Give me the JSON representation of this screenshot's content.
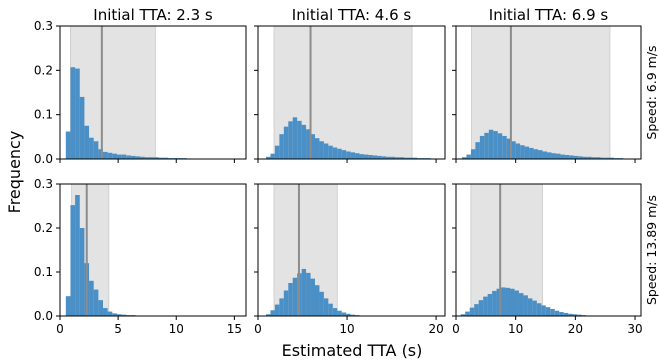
{
  "figure": {
    "ylabel": "Frequency",
    "xlabel": "Estimated TTA (s)",
    "row_labels": [
      "Speed: 6.9 m/s",
      "Speed: 13.89 m/s"
    ],
    "col_titles": [
      "Initial TTA: 2.3 s",
      "Initial TTA: 4.6 s",
      "Initial TTA: 6.9 s"
    ]
  },
  "colors": {
    "bar": "#4a8fc5",
    "band": "#e3e3e3",
    "line": "#8c8c8c"
  },
  "chart_data": [
    {
      "type": "bar",
      "title": "Initial TTA: 2.3 s",
      "row_label": "Speed: 6.9 m/s",
      "xlim": [
        0,
        16
      ],
      "ylim": [
        0,
        0.3
      ],
      "xticks": [
        0,
        5,
        10,
        15
      ],
      "yticks": [
        "0.0",
        "0.1",
        "0.2",
        "0.3"
      ],
      "bin_start": 0.5,
      "bin_width": 0.4,
      "values": [
        0.062,
        0.207,
        0.204,
        0.14,
        0.075,
        0.048,
        0.04,
        0.022,
        0.016,
        0.014,
        0.012,
        0.01,
        0.01,
        0.008,
        0.007,
        0.006,
        0.005,
        0.004,
        0.004,
        0.004,
        0.003,
        0.003,
        0.002,
        0.002,
        0.002,
        0.002,
        0.001,
        0.001,
        0.001,
        0.001,
        0.001,
        0.001,
        0.001,
        0.001,
        0.001
      ],
      "band": [
        0.9,
        8.2
      ],
      "marker": 3.6
    },
    {
      "type": "bar",
      "title": "Initial TTA: 4.6 s",
      "row_label": "Speed: 6.9 m/s",
      "xlim": [
        0,
        21
      ],
      "ylim": [
        0,
        0.3
      ],
      "xticks": [
        0,
        10,
        20
      ],
      "yticks": [
        "0.0",
        "0.1",
        "0.2",
        "0.3"
      ],
      "bin_start": 0.9,
      "bin_width": 0.5,
      "values": [
        0.005,
        0.012,
        0.03,
        0.056,
        0.073,
        0.085,
        0.094,
        0.086,
        0.077,
        0.067,
        0.056,
        0.047,
        0.04,
        0.035,
        0.03,
        0.026,
        0.023,
        0.02,
        0.017,
        0.015,
        0.013,
        0.011,
        0.01,
        0.009,
        0.008,
        0.007,
        0.006,
        0.005,
        0.005,
        0.004,
        0.004,
        0.003,
        0.003,
        0.003,
        0.002,
        0.002,
        0.002
      ],
      "band": [
        1.8,
        17.3
      ],
      "marker": 5.9
    },
    {
      "type": "bar",
      "title": "Initial TTA: 6.9 s",
      "row_label": "Speed: 6.9 m/s",
      "xlim": [
        0,
        31
      ],
      "ylim": [
        0,
        0.3
      ],
      "xticks": [
        0,
        10,
        20,
        30
      ],
      "yticks": [
        "0.0",
        "0.1",
        "0.2",
        "0.3"
      ],
      "bin_start": 1.0,
      "bin_width": 0.75,
      "values": [
        0.004,
        0.01,
        0.022,
        0.038,
        0.052,
        0.059,
        0.066,
        0.063,
        0.058,
        0.052,
        0.046,
        0.04,
        0.035,
        0.031,
        0.028,
        0.025,
        0.022,
        0.02,
        0.017,
        0.015,
        0.013,
        0.012,
        0.01,
        0.009,
        0.008,
        0.007,
        0.006,
        0.005,
        0.005,
        0.004,
        0.004,
        0.003,
        0.003,
        0.003,
        0.002,
        0.002
      ],
      "band": [
        2.6,
        25.8
      ],
      "marker": 9.2
    },
    {
      "type": "bar",
      "title": "",
      "row_label": "Speed: 13.89 m/s",
      "xlim": [
        0,
        16
      ],
      "ylim": [
        0,
        0.3
      ],
      "xticks": [
        0,
        5,
        10,
        15
      ],
      "yticks": [
        "0.0",
        "0.1",
        "0.2",
        "0.3"
      ],
      "bin_start": 0.5,
      "bin_width": 0.4,
      "values": [
        0.045,
        0.252,
        0.275,
        0.2,
        0.12,
        0.08,
        0.06,
        0.036,
        0.018,
        0.01,
        0.006,
        0.004,
        0.003,
        0.002,
        0.002,
        0.001,
        0.001
      ],
      "band": [
        1.0,
        4.2
      ],
      "marker": 2.3
    },
    {
      "type": "bar",
      "title": "",
      "row_label": "Speed: 13.89 m/s",
      "xlim": [
        0,
        21
      ],
      "ylim": [
        0,
        0.3
      ],
      "xticks": [
        0,
        10,
        20
      ],
      "yticks": [
        "0.0",
        "0.1",
        "0.2",
        "0.3"
      ],
      "bin_start": 0.9,
      "bin_width": 0.5,
      "values": [
        0.004,
        0.013,
        0.026,
        0.04,
        0.058,
        0.075,
        0.087,
        0.097,
        0.107,
        0.098,
        0.085,
        0.07,
        0.055,
        0.04,
        0.028,
        0.018,
        0.012,
        0.008,
        0.005,
        0.003,
        0.002,
        0.001
      ],
      "band": [
        1.8,
        8.9
      ],
      "marker": 4.6
    },
    {
      "type": "bar",
      "title": "",
      "row_label": "Speed: 13.89 m/s",
      "xlim": [
        0,
        31
      ],
      "ylim": [
        0,
        0.3
      ],
      "xticks": [
        0,
        10,
        20,
        30
      ],
      "yticks": [
        "0.0",
        "0.1",
        "0.2",
        "0.3"
      ],
      "bin_start": 0.8,
      "bin_width": 0.75,
      "values": [
        0.004,
        0.01,
        0.019,
        0.027,
        0.036,
        0.044,
        0.05,
        0.057,
        0.062,
        0.065,
        0.064,
        0.062,
        0.058,
        0.052,
        0.047,
        0.04,
        0.035,
        0.029,
        0.024,
        0.02,
        0.016,
        0.012,
        0.009,
        0.007,
        0.005,
        0.004,
        0.003,
        0.002,
        0.001,
        0.001
      ],
      "band": [
        2.5,
        14.5
      ],
      "marker": 7.4
    }
  ]
}
